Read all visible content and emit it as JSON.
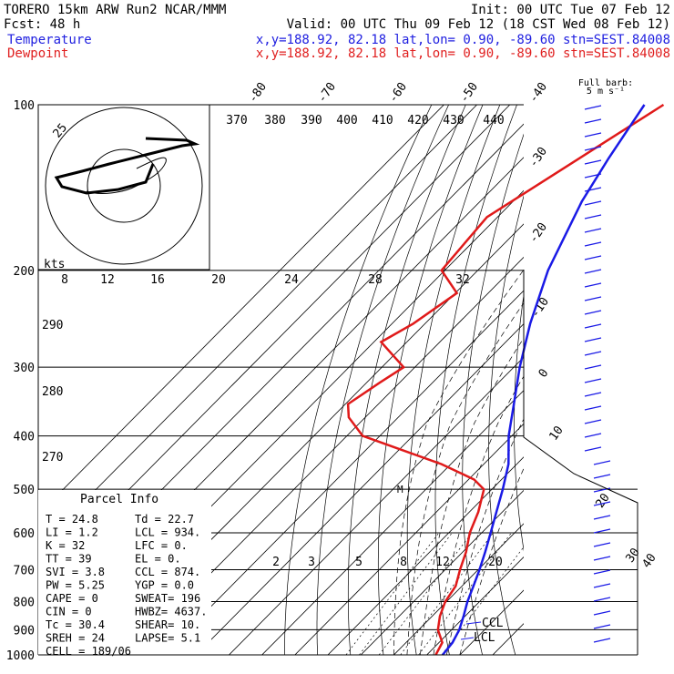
{
  "header": {
    "line1_left": "TORERO  15km ARW   Run2    NCAR/MMM",
    "line1_right": "Init: 00 UTC Tue 07 Feb 12",
    "line2_left": "Fcst:   48 h",
    "line2_right": "Valid: 00 UTC Thu 09 Feb 12 (18 CST Wed 08 Feb 12)",
    "temp_name": "Temperature",
    "temp_info": "x,y=188.92, 82.18   lat,lon=  0.90, -89.60   stn=SEST.84008",
    "dew_name": "Dewpoint",
    "dew_info": "x,y=188.92, 82.18   lat,lon=  0.90, -89.60   stn=SEST.84008"
  },
  "chart_data": {
    "type": "skew-t",
    "pressure_axis_labels": [
      "100",
      "200",
      "300",
      "400",
      "500",
      "600",
      "700",
      "800",
      "900",
      "1000"
    ],
    "pressure_levels": [
      100,
      200,
      300,
      400,
      500,
      600,
      700,
      800,
      900,
      1000
    ],
    "temperature_labels_top": [
      "-80",
      "-70",
      "-60",
      "-50",
      "-40"
    ],
    "temperature_labels_right": [
      "-30",
      "-20",
      "-10",
      "0",
      "10",
      "20",
      "30",
      "40"
    ],
    "theta_labels": [
      "370",
      "380",
      "390",
      "400",
      "410",
      "420",
      "430",
      "440"
    ],
    "mixing_ratio_labels": [
      "2",
      "3",
      "5",
      "8",
      "12",
      "20"
    ],
    "dry_adiabat_labels_left": [
      "290",
      "280",
      "270"
    ],
    "hodograph": {
      "unit_label": "kts",
      "speed_labels": [
        "8",
        "12",
        "16",
        "20",
        "24",
        "28",
        "32"
      ],
      "ring_label": "25"
    },
    "barb_legend": {
      "line1": "Full barb:",
      "line2": "5 m s⁻¹"
    },
    "lcl_label": "LCL",
    "ccl_label": "CCL",
    "series": [
      {
        "name": "Temperature",
        "color": "#1a1ae6",
        "points": [
          [
            100,
            -79.2
          ],
          [
            125,
            -74.0
          ],
          [
            150,
            -69.1
          ],
          [
            200,
            -58.7
          ],
          [
            250,
            -48.1
          ],
          [
            300,
            -38.2
          ],
          [
            350,
            -28.9
          ],
          [
            400,
            -20.9
          ],
          [
            450,
            -12.5
          ],
          [
            500,
            -6.7
          ],
          [
            550,
            -1.8
          ],
          [
            600,
            2.7
          ],
          [
            650,
            6.8
          ],
          [
            700,
            10.4
          ],
          [
            750,
            13.5
          ],
          [
            800,
            16.3
          ],
          [
            850,
            19.5
          ],
          [
            900,
            22.3
          ],
          [
            950,
            24.1
          ],
          [
            1000,
            24.8
          ]
        ]
      },
      {
        "name": "Dewpoint",
        "color": "#e01a1a",
        "points": [
          [
            100,
            -73.4
          ],
          [
            160,
            -93.2
          ],
          [
            200,
            -91.0
          ],
          [
            220,
            -79.5
          ],
          [
            250,
            -83.6
          ],
          [
            270,
            -87.8
          ],
          [
            300,
            -73.4
          ],
          [
            320,
            -76.0
          ],
          [
            350,
            -79.2
          ],
          [
            370,
            -75.0
          ],
          [
            400,
            -65.2
          ],
          [
            420,
            -51.8
          ],
          [
            450,
            -32.9
          ],
          [
            480,
            -18.3
          ],
          [
            500,
            -12.4
          ],
          [
            550,
            -7.3
          ],
          [
            600,
            -3.6
          ],
          [
            650,
            1.0
          ],
          [
            700,
            4.5
          ],
          [
            750,
            8.1
          ],
          [
            800,
            9.6
          ],
          [
            850,
            12.3
          ],
          [
            900,
            15.8
          ],
          [
            950,
            21.0
          ],
          [
            1000,
            22.7
          ]
        ]
      }
    ]
  },
  "parcel": {
    "title": "Parcel Info",
    "rows": [
      [
        "T  =    24.8",
        "Td =   22.7"
      ],
      [
        "LI =     1.2",
        "LCL =  934."
      ],
      [
        "K  =      32",
        "LFC =     0."
      ],
      [
        "TT =      39",
        "EL  =     0."
      ],
      [
        "SVI =    3.8",
        "CCL =  874."
      ],
      [
        "PW =    5.25",
        "YGP =   0.0"
      ],
      [
        "CAPE =     0",
        "SWEAT=  196"
      ],
      [
        "CIN =      0",
        "HWBZ= 4637."
      ],
      [
        "Tc =    30.4",
        "SHEAR=  10."
      ],
      [
        "SREH =    24",
        "LAPSE=  5.1"
      ],
      [
        "CELL = 189/06",
        ""
      ]
    ]
  }
}
